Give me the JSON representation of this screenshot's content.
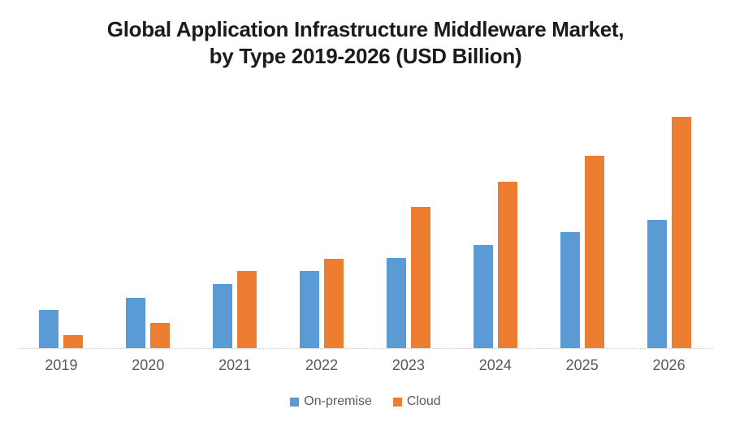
{
  "title": {
    "line1": "Global Application Infrastructure Middleware Market,",
    "line2": "by Type 2019-2026 (USD Billion)"
  },
  "legend": {
    "items": [
      {
        "label": "On-premise",
        "color": "#5B9BD5"
      },
      {
        "label": "Cloud",
        "color": "#ED7D31"
      }
    ]
  },
  "style": {
    "on_premise_color": "#5B9BD5",
    "cloud_color": "#ED7D31",
    "axis_line_color": "#c9c9c9",
    "tick_label_color": "#595959",
    "title_color": "#1b1b1b",
    "background": "#ffffff"
  },
  "chart_data": {
    "type": "bar",
    "title": "Global Application Infrastructure Middleware Market, by Type 2019-2026 (USD Billion)",
    "categories": [
      "2019",
      "2020",
      "2021",
      "2022",
      "2023",
      "2024",
      "2025",
      "2026"
    ],
    "series": [
      {
        "name": "On-premise",
        "color": "#5B9BD5",
        "values": [
          4.7,
          6.2,
          7.9,
          9.5,
          11.1,
          12.7,
          14.3,
          15.8
        ]
      },
      {
        "name": "Cloud",
        "color": "#ED7D31",
        "values": [
          1.6,
          3.1,
          9.5,
          11.0,
          17.4,
          20.5,
          23.7,
          28.5
        ]
      }
    ],
    "xlabel": "",
    "ylabel": "",
    "units": "USD Billion",
    "ylim": [
      0,
      30
    ],
    "grid": false,
    "y_axis_visible": false,
    "legend_position": "bottom"
  }
}
